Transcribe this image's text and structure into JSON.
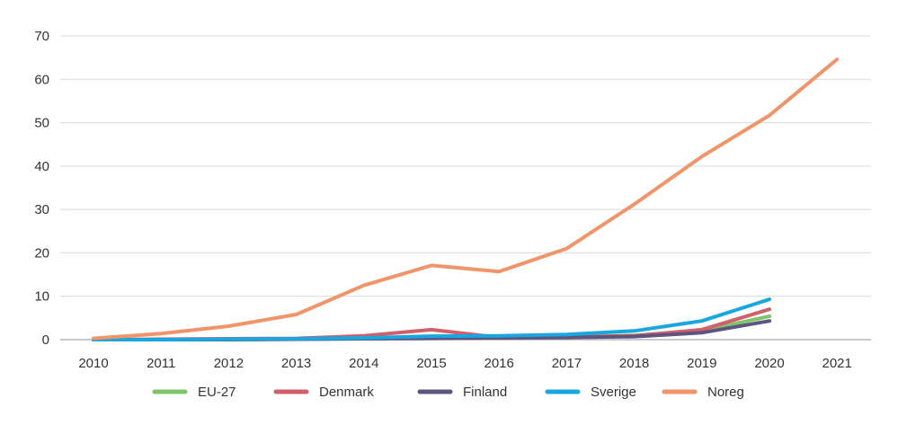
{
  "chart_data": {
    "type": "line",
    "title": "",
    "xlabel": "",
    "ylabel": "",
    "categories": [
      "2010",
      "2011",
      "2012",
      "2013",
      "2014",
      "2015",
      "2016",
      "2017",
      "2018",
      "2019",
      "2020",
      "2021"
    ],
    "ylim": [
      0,
      70
    ],
    "yticks": [
      0,
      10,
      20,
      30,
      40,
      50,
      60,
      70
    ],
    "grid": true,
    "legend_position": "bottom",
    "series": [
      {
        "name": "EU-27",
        "color": "#7dc46a",
        "values": [
          0,
          0,
          0,
          0.1,
          0.2,
          0.5,
          0.4,
          0.6,
          1.0,
          2.0,
          5.4,
          null
        ]
      },
      {
        "name": "Denmark",
        "color": "#d0606b",
        "values": [
          0,
          0.1,
          0.2,
          0.3,
          0.9,
          2.3,
          0.5,
          0.6,
          0.9,
          2.3,
          7.0,
          null
        ]
      },
      {
        "name": "Finland",
        "color": "#5d5480",
        "values": [
          0,
          0,
          0,
          0.1,
          0.2,
          0.3,
          0.4,
          0.5,
          0.7,
          1.6,
          4.3,
          null
        ]
      },
      {
        "name": "Sverige",
        "color": "#1aa7e0",
        "values": [
          0,
          0,
          0.1,
          0.2,
          0.4,
          0.8,
          0.9,
          1.2,
          2.0,
          4.3,
          9.3,
          null
        ]
      },
      {
        "name": "Noreg",
        "color": "#f0956a",
        "values": [
          0.3,
          1.4,
          3.1,
          5.8,
          12.5,
          17.1,
          15.7,
          21.0,
          31.2,
          42.2,
          51.7,
          64.6
        ]
      }
    ]
  }
}
